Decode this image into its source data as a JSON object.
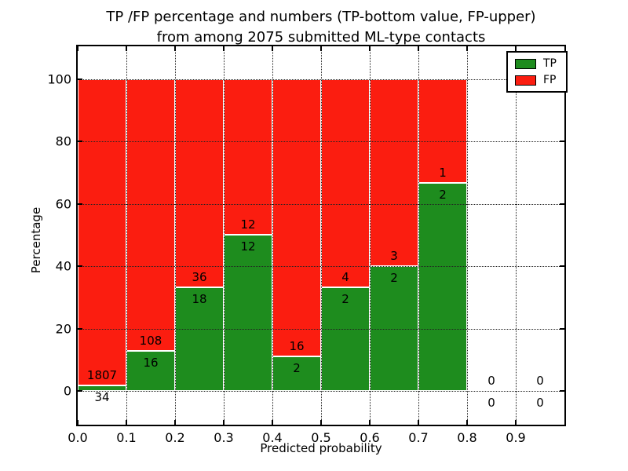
{
  "header": {
    "title_line1": "TP /FP percentage and numbers (TP-bottom value, FP-upper)",
    "title_line2": "from among 2075 submitted ML-type contacts"
  },
  "chart_data": {
    "type": "bar",
    "variant": "stacked-100-percent",
    "title": "TP /FP percentage and numbers (TP-bottom value, FP-upper)\nfrom among 2075 submitted ML-type contacts",
    "xlabel": "Predicted probability",
    "ylabel": "Percentage",
    "total_submitted_contacts": 2075,
    "xlim": [
      0.0,
      1.0
    ],
    "ylim": [
      -11,
      110
    ],
    "xtick_labels": [
      "0.0",
      "0.1",
      "0.2",
      "0.3",
      "0.4",
      "0.5",
      "0.6",
      "0.7",
      "0.8",
      "0.9"
    ],
    "ytick_values": [
      0,
      20,
      40,
      60,
      80,
      100
    ],
    "grid": {
      "on": true,
      "style": "dotted",
      "color": "#222222"
    },
    "bar_width": 0.1,
    "colors": {
      "tp": "#1e8c1e",
      "fp": "#fb1d10"
    },
    "legend": {
      "position": "upper-right",
      "entries": [
        {
          "label": "TP",
          "color": "#1e8c1e"
        },
        {
          "label": "FP",
          "color": "#fb1d10"
        }
      ]
    },
    "bins": [
      {
        "x_start": 0.0,
        "x_end": 0.1,
        "tp": 34,
        "fp": 1807
      },
      {
        "x_start": 0.1,
        "x_end": 0.2,
        "tp": 16,
        "fp": 108
      },
      {
        "x_start": 0.2,
        "x_end": 0.3,
        "tp": 18,
        "fp": 36
      },
      {
        "x_start": 0.3,
        "x_end": 0.4,
        "tp": 12,
        "fp": 12
      },
      {
        "x_start": 0.4,
        "x_end": 0.5,
        "tp": 2,
        "fp": 16
      },
      {
        "x_start": 0.5,
        "x_end": 0.6,
        "tp": 2,
        "fp": 4
      },
      {
        "x_start": 0.6,
        "x_end": 0.7,
        "tp": 2,
        "fp": 3
      },
      {
        "x_start": 0.7,
        "x_end": 0.8,
        "tp": 2,
        "fp": 1
      },
      {
        "x_start": 0.8,
        "x_end": 0.9,
        "tp": 0,
        "fp": 0
      },
      {
        "x_start": 0.9,
        "x_end": 1.0,
        "tp": 0,
        "fp": 0
      }
    ]
  }
}
